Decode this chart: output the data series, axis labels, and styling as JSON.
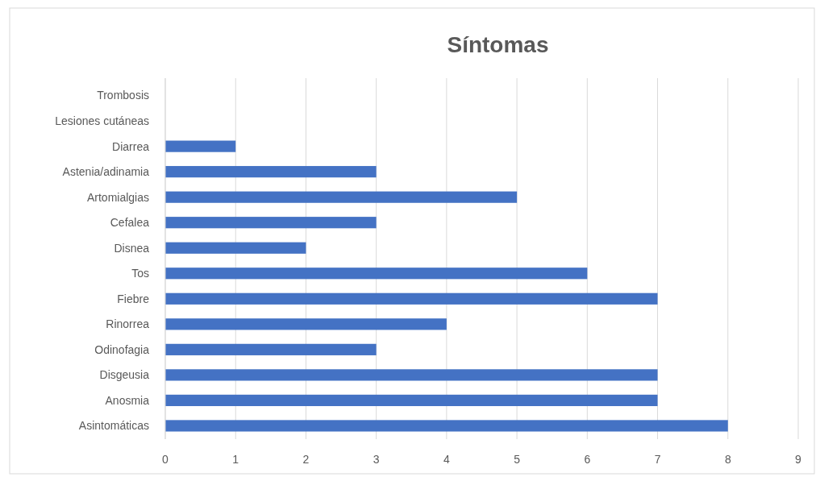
{
  "chart_data": {
    "type": "bar",
    "orientation": "horizontal",
    "title": "Síntomas",
    "categories": [
      "Trombosis",
      "Lesiones cutáneas",
      "Diarrea",
      "Astenia/adinamia",
      "Artomialgias",
      "Cefalea",
      "Disnea",
      "Tos",
      "Fiebre",
      "Rinorrea",
      "Odinofagia",
      "Disgeusia",
      "Anosmia",
      "Asintomáticas"
    ],
    "values": [
      0,
      0,
      1,
      3,
      5,
      3,
      2,
      6,
      7,
      4,
      3,
      7,
      7,
      8
    ],
    "color": "#4472c4",
    "xlim": [
      0,
      9
    ],
    "xticks": [
      0,
      1,
      2,
      3,
      4,
      5,
      6,
      7,
      8,
      9
    ],
    "grid": "x"
  }
}
